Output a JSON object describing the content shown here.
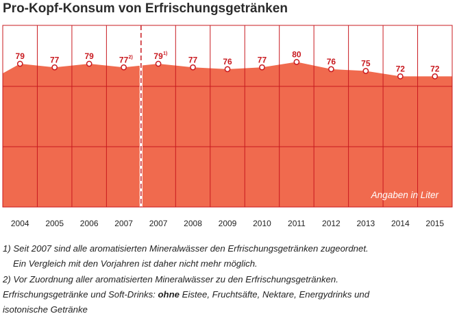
{
  "title": "Pro-Kopf-Konsum von Erfrischungsgetränken",
  "unit_note": "Angaben in Liter",
  "footnotes": {
    "line1": "1) Seit 2007 sind alle aromatisierten Mineralwässer den Erfrischungsgetränken zugeordnet.",
    "line2": "Ein Vergleich mit den Vorjahren ist daher nicht mehr möglich.",
    "line3": "2) Vor Zuordnung aller aromatisierten Mineralwässer zu den Erfrischungsgetränken.",
    "line4_pre": "Erfrischungsgetränke und Soft-Drinks: ",
    "line4_bold": "ohne",
    "line4_post": " Eistee, Fruchtsäfte, Nektare, Energydrinks und",
    "line5": "isotonische Getränke"
  },
  "colors": {
    "area": "#f06a4e",
    "grid": "#c8181e",
    "marker_stroke": "#c8181e",
    "marker_fill": "#ffffff",
    "label": "#c8181e",
    "title": "#2b2b2b"
  },
  "chart_data": {
    "type": "area",
    "categories": [
      "2004",
      "2005",
      "2006",
      "2007",
      "2007",
      "2008",
      "2009",
      "2010",
      "2011",
      "2012",
      "2013",
      "2014",
      "2015"
    ],
    "values": [
      79,
      77,
      79,
      77,
      79,
      77,
      76,
      77,
      80,
      76,
      75,
      72,
      72
    ],
    "value_labels": [
      "79",
      "77",
      "79",
      "77",
      "79",
      "77",
      "76",
      "77",
      "80",
      "76",
      "75",
      "72",
      "72"
    ],
    "value_superscripts": [
      "",
      "",
      "",
      "2)",
      "1)",
      "",
      "",
      "",
      "",
      "",
      "",
      "",
      ""
    ],
    "break_after_index": 3,
    "ylim": [
      0,
      100
    ],
    "grid": true,
    "xlabel": "",
    "ylabel": ""
  }
}
